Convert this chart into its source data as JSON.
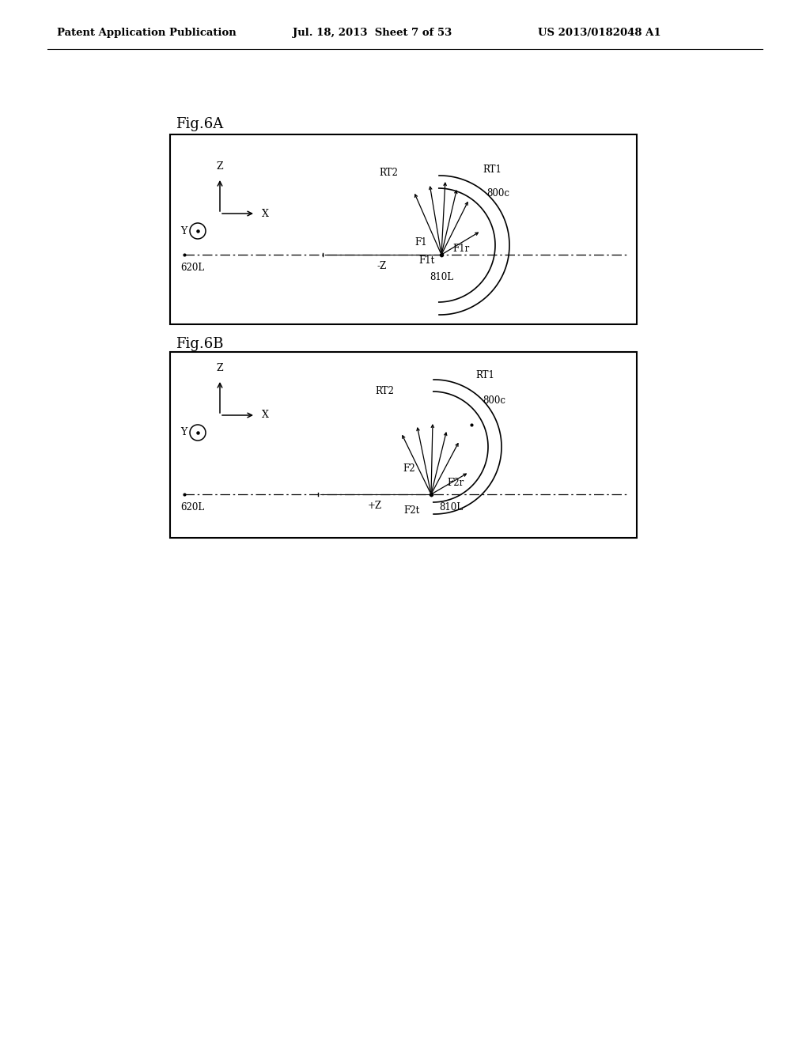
{
  "header_left": "Patent Application Publication",
  "header_mid": "Jul. 18, 2013  Sheet 7 of 53",
  "header_right": "US 2013/0182048 A1",
  "fig6a_label": "Fig.6A",
  "fig6b_label": "Fig.6B",
  "bg_color": "#ffffff",
  "box_color": "#000000"
}
